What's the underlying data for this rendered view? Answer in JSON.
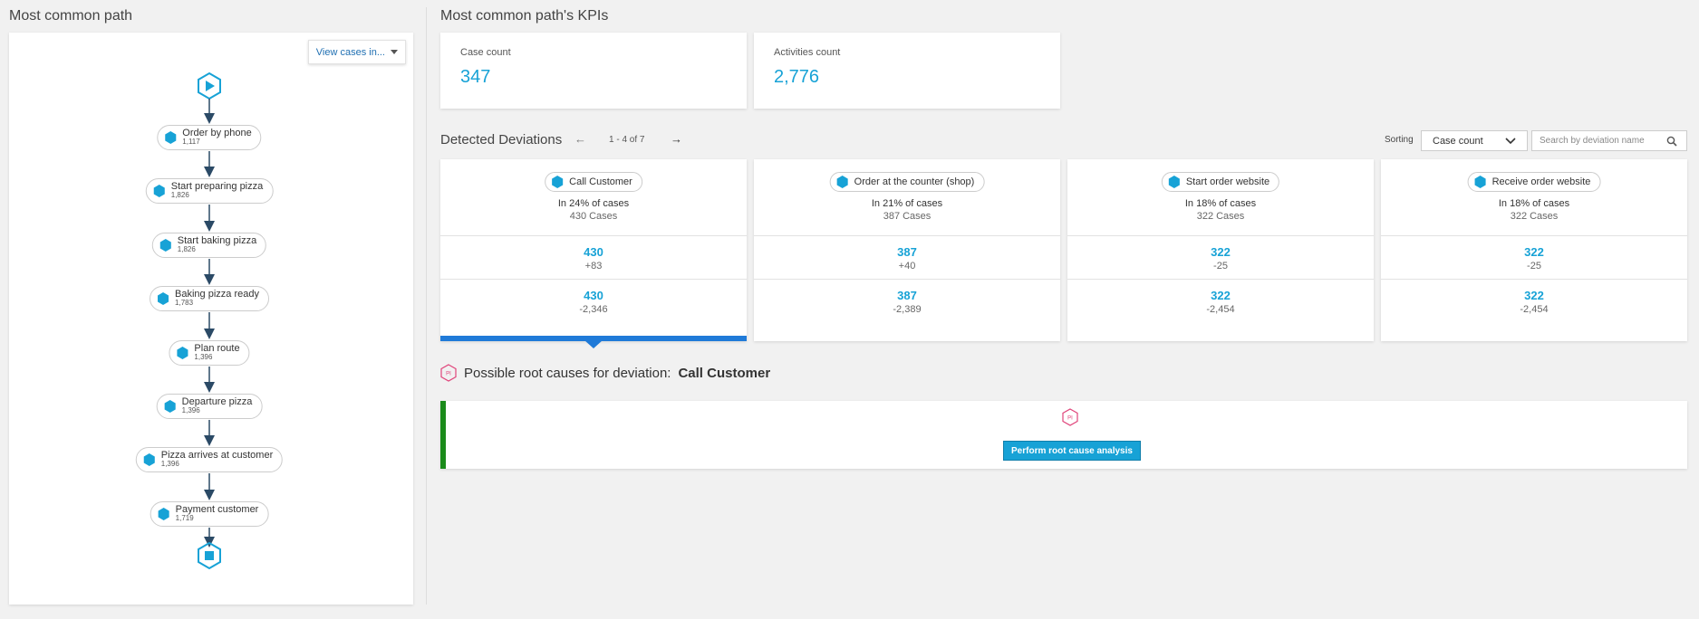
{
  "left": {
    "title": "Most common path",
    "view_button": "View cases in...",
    "nodes": [
      {
        "label": "Order by phone",
        "count": "1,117"
      },
      {
        "label": "Start preparing pizza",
        "count": "1,826"
      },
      {
        "label": "Start baking pizza",
        "count": "1,826"
      },
      {
        "label": "Baking pizza ready",
        "count": "1,783"
      },
      {
        "label": "Plan route",
        "count": "1,396"
      },
      {
        "label": "Departure pizza",
        "count": "1,396"
      },
      {
        "label": "Pizza arrives at customer",
        "count": "1,396"
      },
      {
        "label": "Payment customer",
        "count": "1,719"
      }
    ]
  },
  "kpis": {
    "title": "Most common path's KPIs",
    "items": [
      {
        "label": "Case count",
        "value": "347"
      },
      {
        "label": "Activities count",
        "value": "2,776"
      }
    ]
  },
  "deviations": {
    "title": "Detected Deviations",
    "pager": "1 - 4 of 7",
    "sort_label": "Sorting",
    "sort_value": "Case count",
    "search_placeholder": "Search by deviation name",
    "cards": [
      {
        "name": "Call Customer",
        "pct": "In 24% of cases",
        "cases": "430 Cases",
        "m1": "430",
        "d1": "+83",
        "m2": "430",
        "d2": "-2,346"
      },
      {
        "name": "Order at the counter (shop)",
        "pct": "In 21% of cases",
        "cases": "387 Cases",
        "m1": "387",
        "d1": "+40",
        "m2": "387",
        "d2": "-2,389"
      },
      {
        "name": "Start order website",
        "pct": "In 18% of cases",
        "cases": "322 Cases",
        "m1": "322",
        "d1": "-25",
        "m2": "322",
        "d2": "-2,454"
      },
      {
        "name": "Receive order website",
        "pct": "In 18% of cases",
        "cases": "322 Cases",
        "m1": "322",
        "d1": "-25",
        "m2": "322",
        "d2": "-2,454"
      }
    ]
  },
  "root_cause": {
    "prefix": "Possible root causes for deviation:",
    "deviation": "Call Customer",
    "badge": "PI",
    "button": "Perform root cause analysis"
  },
  "colors": {
    "accent": "#17a2d6",
    "selected": "#1f7ad8",
    "flow": "#2b4a66",
    "root_cause_bar": "#1a8a1a",
    "pi_badge": "#e0457b"
  },
  "icons": [
    "play-icon",
    "stop-icon",
    "activity-hex-icon",
    "arrow-left-icon",
    "arrow-right-icon",
    "chevron-down-icon",
    "search-icon",
    "pi-icon"
  ]
}
